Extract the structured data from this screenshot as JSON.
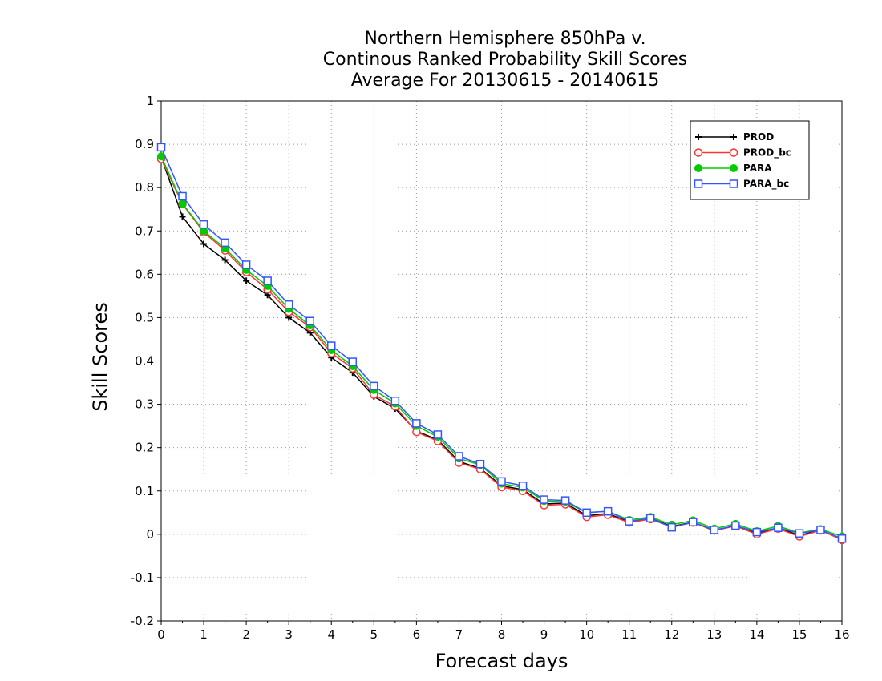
{
  "chart_data": {
    "type": "line",
    "title": [
      "Northern Hemisphere 850hPa v.",
      "Continous Ranked Probability Skill Scores",
      "Average For 20130615 - 20140615"
    ],
    "xlabel": "Forecast days",
    "ylabel": "Skill Scores",
    "xlim": [
      0,
      16
    ],
    "ylim": [
      -0.2,
      1
    ],
    "xticks": [
      "0",
      "1",
      "2",
      "3",
      "4",
      "5",
      "6",
      "7",
      "8",
      "9",
      "10",
      "11",
      "12",
      "13",
      "14",
      "15",
      "16"
    ],
    "yticks": [
      "-0.2",
      "-0.1",
      "0",
      "0.1",
      "0.2",
      "0.3",
      "0.4",
      "0.5",
      "0.6",
      "0.7",
      "0.8",
      "0.9",
      "1"
    ],
    "grid": true,
    "legend_position": "top-right",
    "x": [
      0,
      0.5,
      1,
      1.5,
      2,
      2.5,
      3,
      3.5,
      4,
      4.5,
      5,
      5.5,
      6,
      6.5,
      7,
      7.5,
      8,
      8.5,
      9,
      9.5,
      10,
      10.5,
      11,
      11.5,
      12,
      12.5,
      13,
      13.5,
      14,
      14.5,
      15,
      15.5,
      16
    ],
    "series": [
      {
        "name": "PROD",
        "color": "#000000",
        "marker": "plus",
        "values": [
          0.87,
          0.733,
          0.67,
          0.633,
          0.585,
          0.552,
          0.5,
          0.465,
          0.408,
          0.373,
          0.318,
          0.29,
          0.238,
          0.218,
          0.168,
          0.152,
          0.112,
          0.103,
          0.07,
          0.072,
          0.043,
          0.048,
          0.028,
          0.037,
          0.018,
          0.028,
          0.008,
          0.02,
          0.002,
          0.015,
          -0.003,
          0.01,
          -0.012
        ]
      },
      {
        "name": "PROD_bc",
        "color": "#ff3333",
        "marker": "open-circle",
        "values": [
          0.866,
          0.762,
          0.697,
          0.655,
          0.605,
          0.565,
          0.513,
          0.478,
          0.418,
          0.383,
          0.322,
          0.295,
          0.236,
          0.215,
          0.165,
          0.15,
          0.109,
          0.1,
          0.067,
          0.069,
          0.04,
          0.045,
          0.027,
          0.035,
          0.017,
          0.027,
          0.009,
          0.019,
          0.0,
          0.013,
          -0.005,
          0.009,
          -0.013
        ]
      },
      {
        "name": "PARA",
        "color": "#00cc00",
        "marker": "filled-circle",
        "values": [
          0.872,
          0.763,
          0.7,
          0.66,
          0.61,
          0.573,
          0.52,
          0.482,
          0.425,
          0.388,
          0.333,
          0.302,
          0.25,
          0.225,
          0.175,
          0.16,
          0.117,
          0.108,
          0.077,
          0.075,
          0.05,
          0.053,
          0.033,
          0.04,
          0.022,
          0.032,
          0.013,
          0.024,
          0.007,
          0.019,
          0.003,
          0.012,
          -0.005
        ]
      },
      {
        "name": "PARA_bc",
        "color": "#3355ff",
        "marker": "open-square",
        "values": [
          0.893,
          0.78,
          0.715,
          0.673,
          0.622,
          0.585,
          0.53,
          0.492,
          0.435,
          0.398,
          0.342,
          0.308,
          0.256,
          0.23,
          0.18,
          0.162,
          0.122,
          0.112,
          0.08,
          0.078,
          0.05,
          0.053,
          0.03,
          0.037,
          0.016,
          0.028,
          0.01,
          0.02,
          0.005,
          0.015,
          0.002,
          0.01,
          -0.01
        ]
      }
    ]
  }
}
